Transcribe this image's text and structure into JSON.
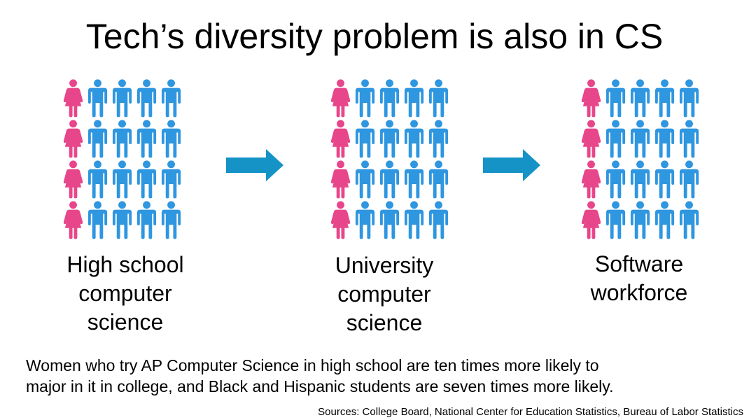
{
  "title": "Tech’s diversity problem is also in CS",
  "colors": {
    "women": "#e8468a",
    "men": "#2f96e0",
    "arrow": "#1593c7",
    "text": "#000000"
  },
  "icons": {
    "woman": "woman-figure-icon",
    "man": "man-figure-icon",
    "arrow": "right-arrow-icon"
  },
  "groups": [
    {
      "label_lines": [
        "High school",
        "computer",
        "science"
      ],
      "rows": [
        [
          "woman",
          "man",
          "man",
          "man",
          "man"
        ],
        [
          "woman",
          "man",
          "man",
          "man",
          "man"
        ],
        [
          "woman",
          "man",
          "man",
          "man",
          "man"
        ],
        [
          "woman",
          "man",
          "man",
          "man",
          "man"
        ]
      ]
    },
    {
      "label_lines": [
        "University",
        "computer",
        "science"
      ],
      "rows": [
        [
          "woman",
          "man",
          "man",
          "man",
          "man"
        ],
        [
          "woman",
          "man",
          "man",
          "man",
          "man"
        ],
        [
          "woman",
          "man",
          "man",
          "man",
          "man"
        ],
        [
          "woman",
          "man",
          "man",
          "man",
          "man"
        ]
      ]
    },
    {
      "label_lines": [
        "Software",
        "workforce"
      ],
      "rows": [
        [
          "woman",
          "man",
          "man",
          "man",
          "man"
        ],
        [
          "woman",
          "man",
          "man",
          "man",
          "man"
        ],
        [
          "woman",
          "man",
          "man",
          "man",
          "man"
        ],
        [
          "woman",
          "man",
          "man",
          "man",
          "man"
        ]
      ]
    }
  ],
  "caption_lines": [
    "Women who try AP Computer Science in high school are ten times more likely to",
    "major in it in college, and Black and Hispanic students are seven times more likely."
  ],
  "sources": "Sources: College Board, National Center for Education Statistics, Bureau of Labor Statistics"
}
